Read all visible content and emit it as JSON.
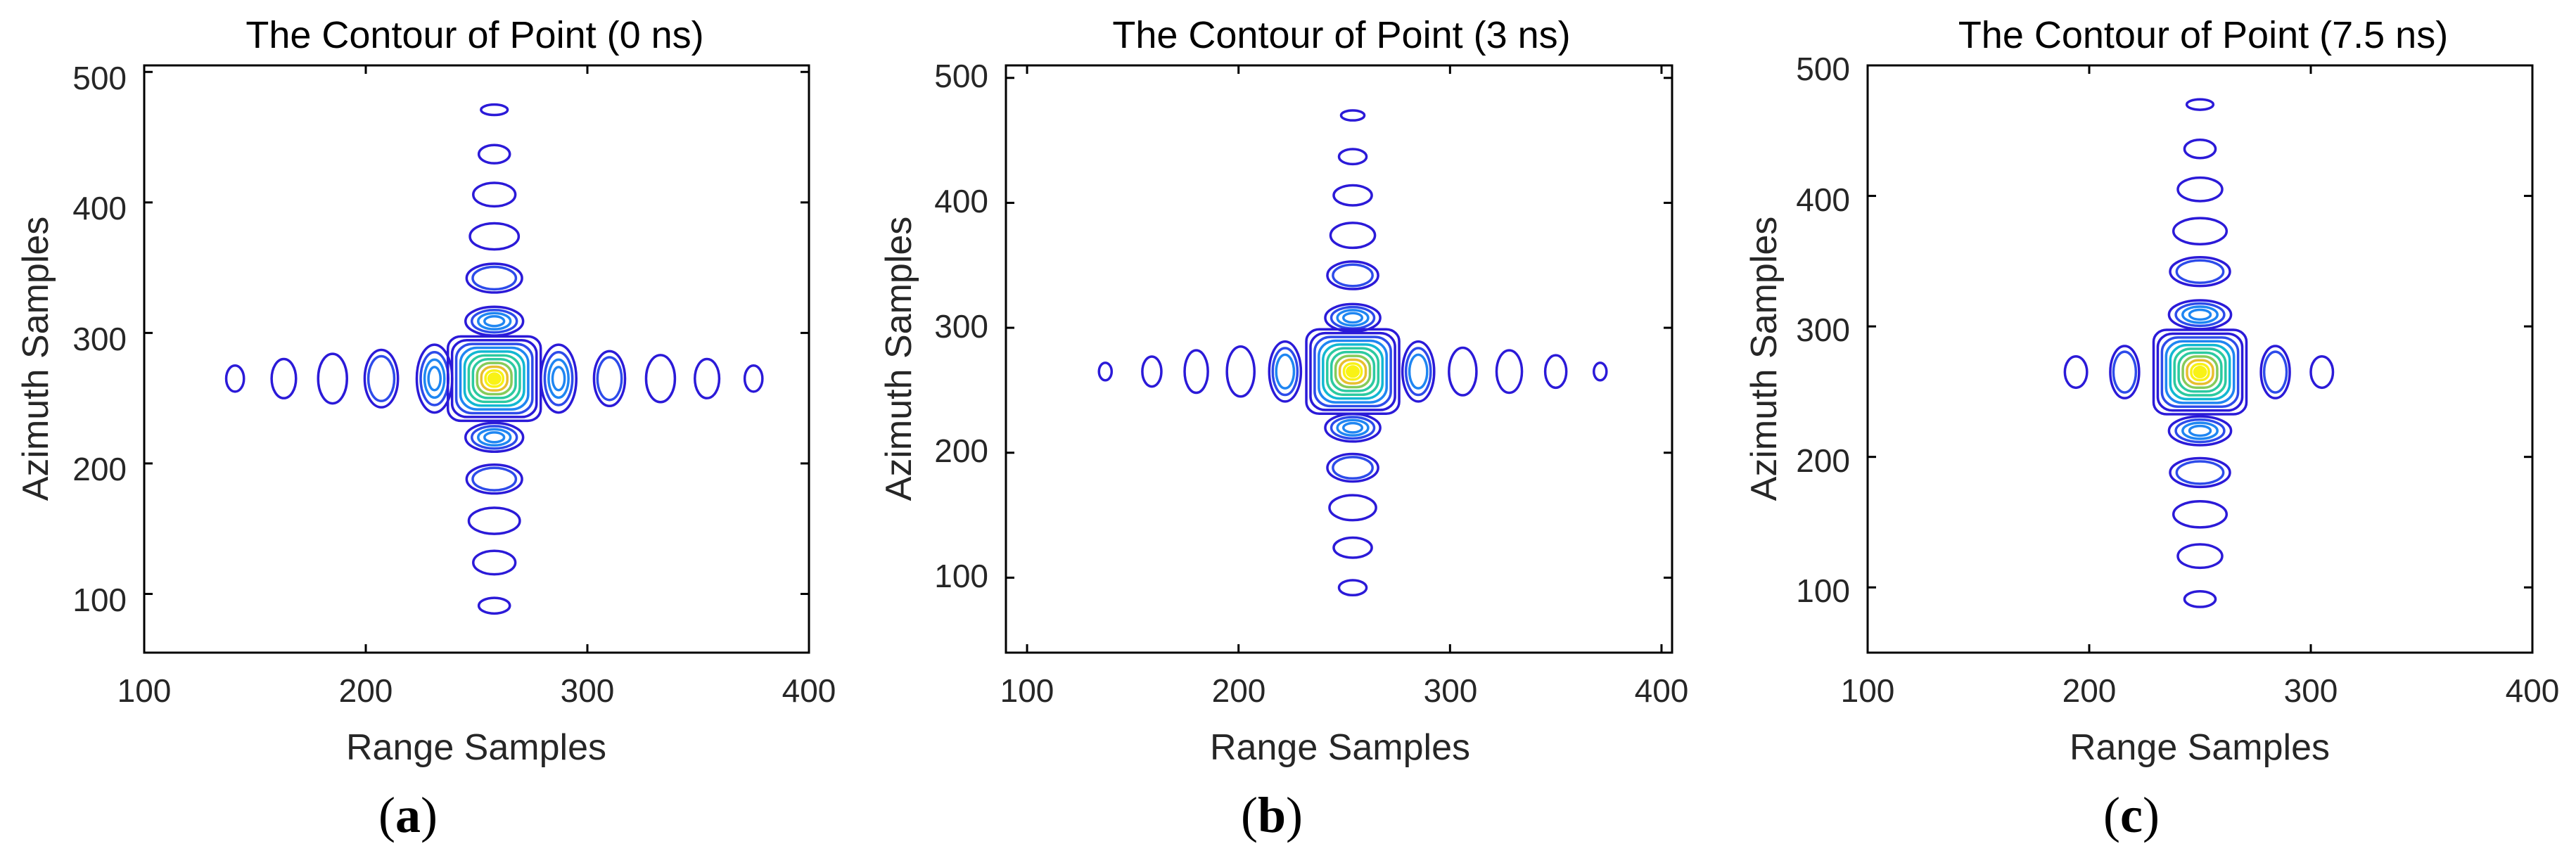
{
  "figure": {
    "captions": [
      {
        "open": "(",
        "letter": "a",
        "close": ")"
      },
      {
        "open": "(",
        "letter": "b",
        "close": ")"
      },
      {
        "open": "(",
        "letter": "c",
        "close": ")"
      }
    ]
  },
  "colors": {
    "axes": "#000000",
    "contour_scale": [
      "#2b1ad8",
      "#2d4bea",
      "#1f86f2",
      "#12b8d2",
      "#2ccaa0",
      "#86cb5a",
      "#e8bf2e",
      "#f9f215"
    ]
  },
  "chart_data": [
    {
      "type": "contour",
      "title": "The Contour of Point (0 ns)",
      "xlabel": "Range Samples",
      "ylabel": "Azimuth Samples",
      "xlim": [
        100,
        400
      ],
      "ylim": [
        55,
        505
      ],
      "xticks": [
        100,
        200,
        300,
        400
      ],
      "yticks": [
        100,
        200,
        300,
        400,
        500
      ],
      "grid": false,
      "peak": {
        "x": 258,
        "y": 265
      },
      "range_sidelobes": [
        {
          "x": 141,
          "y": 265,
          "rx": 4,
          "ry": 10,
          "rings": 1
        },
        {
          "x": 163,
          "y": 265,
          "rx": 5.5,
          "ry": 15,
          "rings": 1
        },
        {
          "x": 185,
          "y": 265,
          "rx": 6.5,
          "ry": 19,
          "rings": 1
        },
        {
          "x": 207,
          "y": 265,
          "rx": 7.5,
          "ry": 22,
          "rings": 2
        },
        {
          "x": 231,
          "y": 265,
          "rx": 8,
          "ry": 26,
          "rings": 4
        },
        {
          "x": 287,
          "y": 265,
          "rx": 8,
          "ry": 26,
          "rings": 4
        },
        {
          "x": 310,
          "y": 265,
          "rx": 7,
          "ry": 21,
          "rings": 2
        },
        {
          "x": 333,
          "y": 265,
          "rx": 6.5,
          "ry": 18,
          "rings": 1
        },
        {
          "x": 354,
          "y": 265,
          "rx": 5.5,
          "ry": 15,
          "rings": 1
        },
        {
          "x": 375,
          "y": 265,
          "rx": 4,
          "ry": 10,
          "rings": 1
        }
      ],
      "azimuth_sidelobes": [
        {
          "x": 258,
          "y": 471,
          "rx": 6,
          "ry": 4,
          "rings": 1
        },
        {
          "x": 258,
          "y": 437,
          "rx": 7,
          "ry": 7,
          "rings": 1
        },
        {
          "x": 258,
          "y": 406,
          "rx": 9.5,
          "ry": 9,
          "rings": 1
        },
        {
          "x": 258,
          "y": 374,
          "rx": 11,
          "ry": 10,
          "rings": 1
        },
        {
          "x": 258,
          "y": 342,
          "rx": 12.5,
          "ry": 11,
          "rings": 2
        },
        {
          "x": 258,
          "y": 309,
          "rx": 13,
          "ry": 11,
          "rings": 4
        },
        {
          "x": 258,
          "y": 220,
          "rx": 13,
          "ry": 11,
          "rings": 4
        },
        {
          "x": 258,
          "y": 188,
          "rx": 12.5,
          "ry": 11,
          "rings": 2
        },
        {
          "x": 258,
          "y": 156,
          "rx": 11.5,
          "ry": 10,
          "rings": 1
        },
        {
          "x": 258,
          "y": 124,
          "rx": 9.5,
          "ry": 9,
          "rings": 1
        },
        {
          "x": 258,
          "y": 91,
          "rx": 7,
          "ry": 6,
          "rings": 1
        }
      ]
    },
    {
      "type": "contour",
      "title": "The Contour of Point (3 ns)",
      "xlabel": "Range Samples",
      "ylabel": "Azimuth Samples",
      "xlim": [
        90,
        405
      ],
      "ylim": [
        40,
        510
      ],
      "xticks": [
        100,
        200,
        300,
        400
      ],
      "yticks": [
        100,
        200,
        300,
        400,
        500
      ],
      "grid": false,
      "peak": {
        "x": 254,
        "y": 265
      },
      "range_sidelobes": [
        {
          "x": 137,
          "y": 265,
          "rx": 3,
          "ry": 7,
          "rings": 1
        },
        {
          "x": 159,
          "y": 265,
          "rx": 4.5,
          "ry": 12,
          "rings": 1
        },
        {
          "x": 180,
          "y": 265,
          "rx": 5.5,
          "ry": 17,
          "rings": 1
        },
        {
          "x": 201,
          "y": 265,
          "rx": 6.5,
          "ry": 20,
          "rings": 1
        },
        {
          "x": 222,
          "y": 265,
          "rx": 7.5,
          "ry": 24,
          "rings": 3
        },
        {
          "x": 285,
          "y": 265,
          "rx": 7.5,
          "ry": 24,
          "rings": 3
        },
        {
          "x": 306,
          "y": 265,
          "rx": 6.5,
          "ry": 19,
          "rings": 1
        },
        {
          "x": 328,
          "y": 265,
          "rx": 6,
          "ry": 17,
          "rings": 1
        },
        {
          "x": 350,
          "y": 265,
          "rx": 5,
          "ry": 13,
          "rings": 1
        },
        {
          "x": 371,
          "y": 265,
          "rx": 3,
          "ry": 7,
          "rings": 1
        }
      ],
      "azimuth_sidelobes": [
        {
          "x": 254,
          "y": 470,
          "rx": 5.5,
          "ry": 4,
          "rings": 1
        },
        {
          "x": 254,
          "y": 437,
          "rx": 6.5,
          "ry": 6,
          "rings": 1
        },
        {
          "x": 254,
          "y": 406,
          "rx": 9,
          "ry": 8,
          "rings": 1
        },
        {
          "x": 254,
          "y": 374,
          "rx": 10.5,
          "ry": 10,
          "rings": 1
        },
        {
          "x": 254,
          "y": 342,
          "rx": 12,
          "ry": 11,
          "rings": 2
        },
        {
          "x": 254,
          "y": 308,
          "rx": 13,
          "ry": 11,
          "rings": 4
        },
        {
          "x": 254,
          "y": 220,
          "rx": 13,
          "ry": 11,
          "rings": 4
        },
        {
          "x": 254,
          "y": 188,
          "rx": 12,
          "ry": 11,
          "rings": 2
        },
        {
          "x": 254,
          "y": 156,
          "rx": 11,
          "ry": 10,
          "rings": 1
        },
        {
          "x": 254,
          "y": 124,
          "rx": 9,
          "ry": 8,
          "rings": 1
        },
        {
          "x": 254,
          "y": 92,
          "rx": 6.5,
          "ry": 6,
          "rings": 1
        }
      ]
    },
    {
      "type": "contour",
      "title": "The Contour of Point (7.5 ns)",
      "xlabel": "Range Samples",
      "ylabel": "Azimuth Samples",
      "xlim": [
        100,
        400
      ],
      "ylim": [
        50,
        500
      ],
      "xticks": [
        100,
        200,
        300,
        400
      ],
      "yticks": [
        100,
        200,
        300,
        400,
        500
      ],
      "grid": false,
      "peak": {
        "x": 250,
        "y": 265
      },
      "range_sidelobes": [
        {
          "x": 194,
          "y": 265,
          "rx": 5,
          "ry": 12,
          "rings": 1
        },
        {
          "x": 216,
          "y": 265,
          "rx": 6.5,
          "ry": 20,
          "rings": 2
        },
        {
          "x": 284,
          "y": 265,
          "rx": 6.5,
          "ry": 20,
          "rings": 2
        },
        {
          "x": 305,
          "y": 265,
          "rx": 5,
          "ry": 12,
          "rings": 1
        }
      ],
      "azimuth_sidelobes": [
        {
          "x": 250,
          "y": 470,
          "rx": 6,
          "ry": 4,
          "rings": 1
        },
        {
          "x": 250,
          "y": 436,
          "rx": 7,
          "ry": 7,
          "rings": 1
        },
        {
          "x": 250,
          "y": 405,
          "rx": 10,
          "ry": 9,
          "rings": 1
        },
        {
          "x": 250,
          "y": 373,
          "rx": 12,
          "ry": 10,
          "rings": 1
        },
        {
          "x": 250,
          "y": 342,
          "rx": 13.5,
          "ry": 11,
          "rings": 2
        },
        {
          "x": 250,
          "y": 309,
          "rx": 14,
          "ry": 11,
          "rings": 4
        },
        {
          "x": 250,
          "y": 220,
          "rx": 14,
          "ry": 11,
          "rings": 4
        },
        {
          "x": 250,
          "y": 188,
          "rx": 13.5,
          "ry": 11,
          "rings": 2
        },
        {
          "x": 250,
          "y": 156,
          "rx": 12,
          "ry": 10,
          "rings": 1
        },
        {
          "x": 250,
          "y": 124,
          "rx": 10,
          "ry": 9,
          "rings": 1
        },
        {
          "x": 250,
          "y": 91,
          "rx": 7,
          "ry": 6,
          "rings": 1
        }
      ]
    }
  ]
}
